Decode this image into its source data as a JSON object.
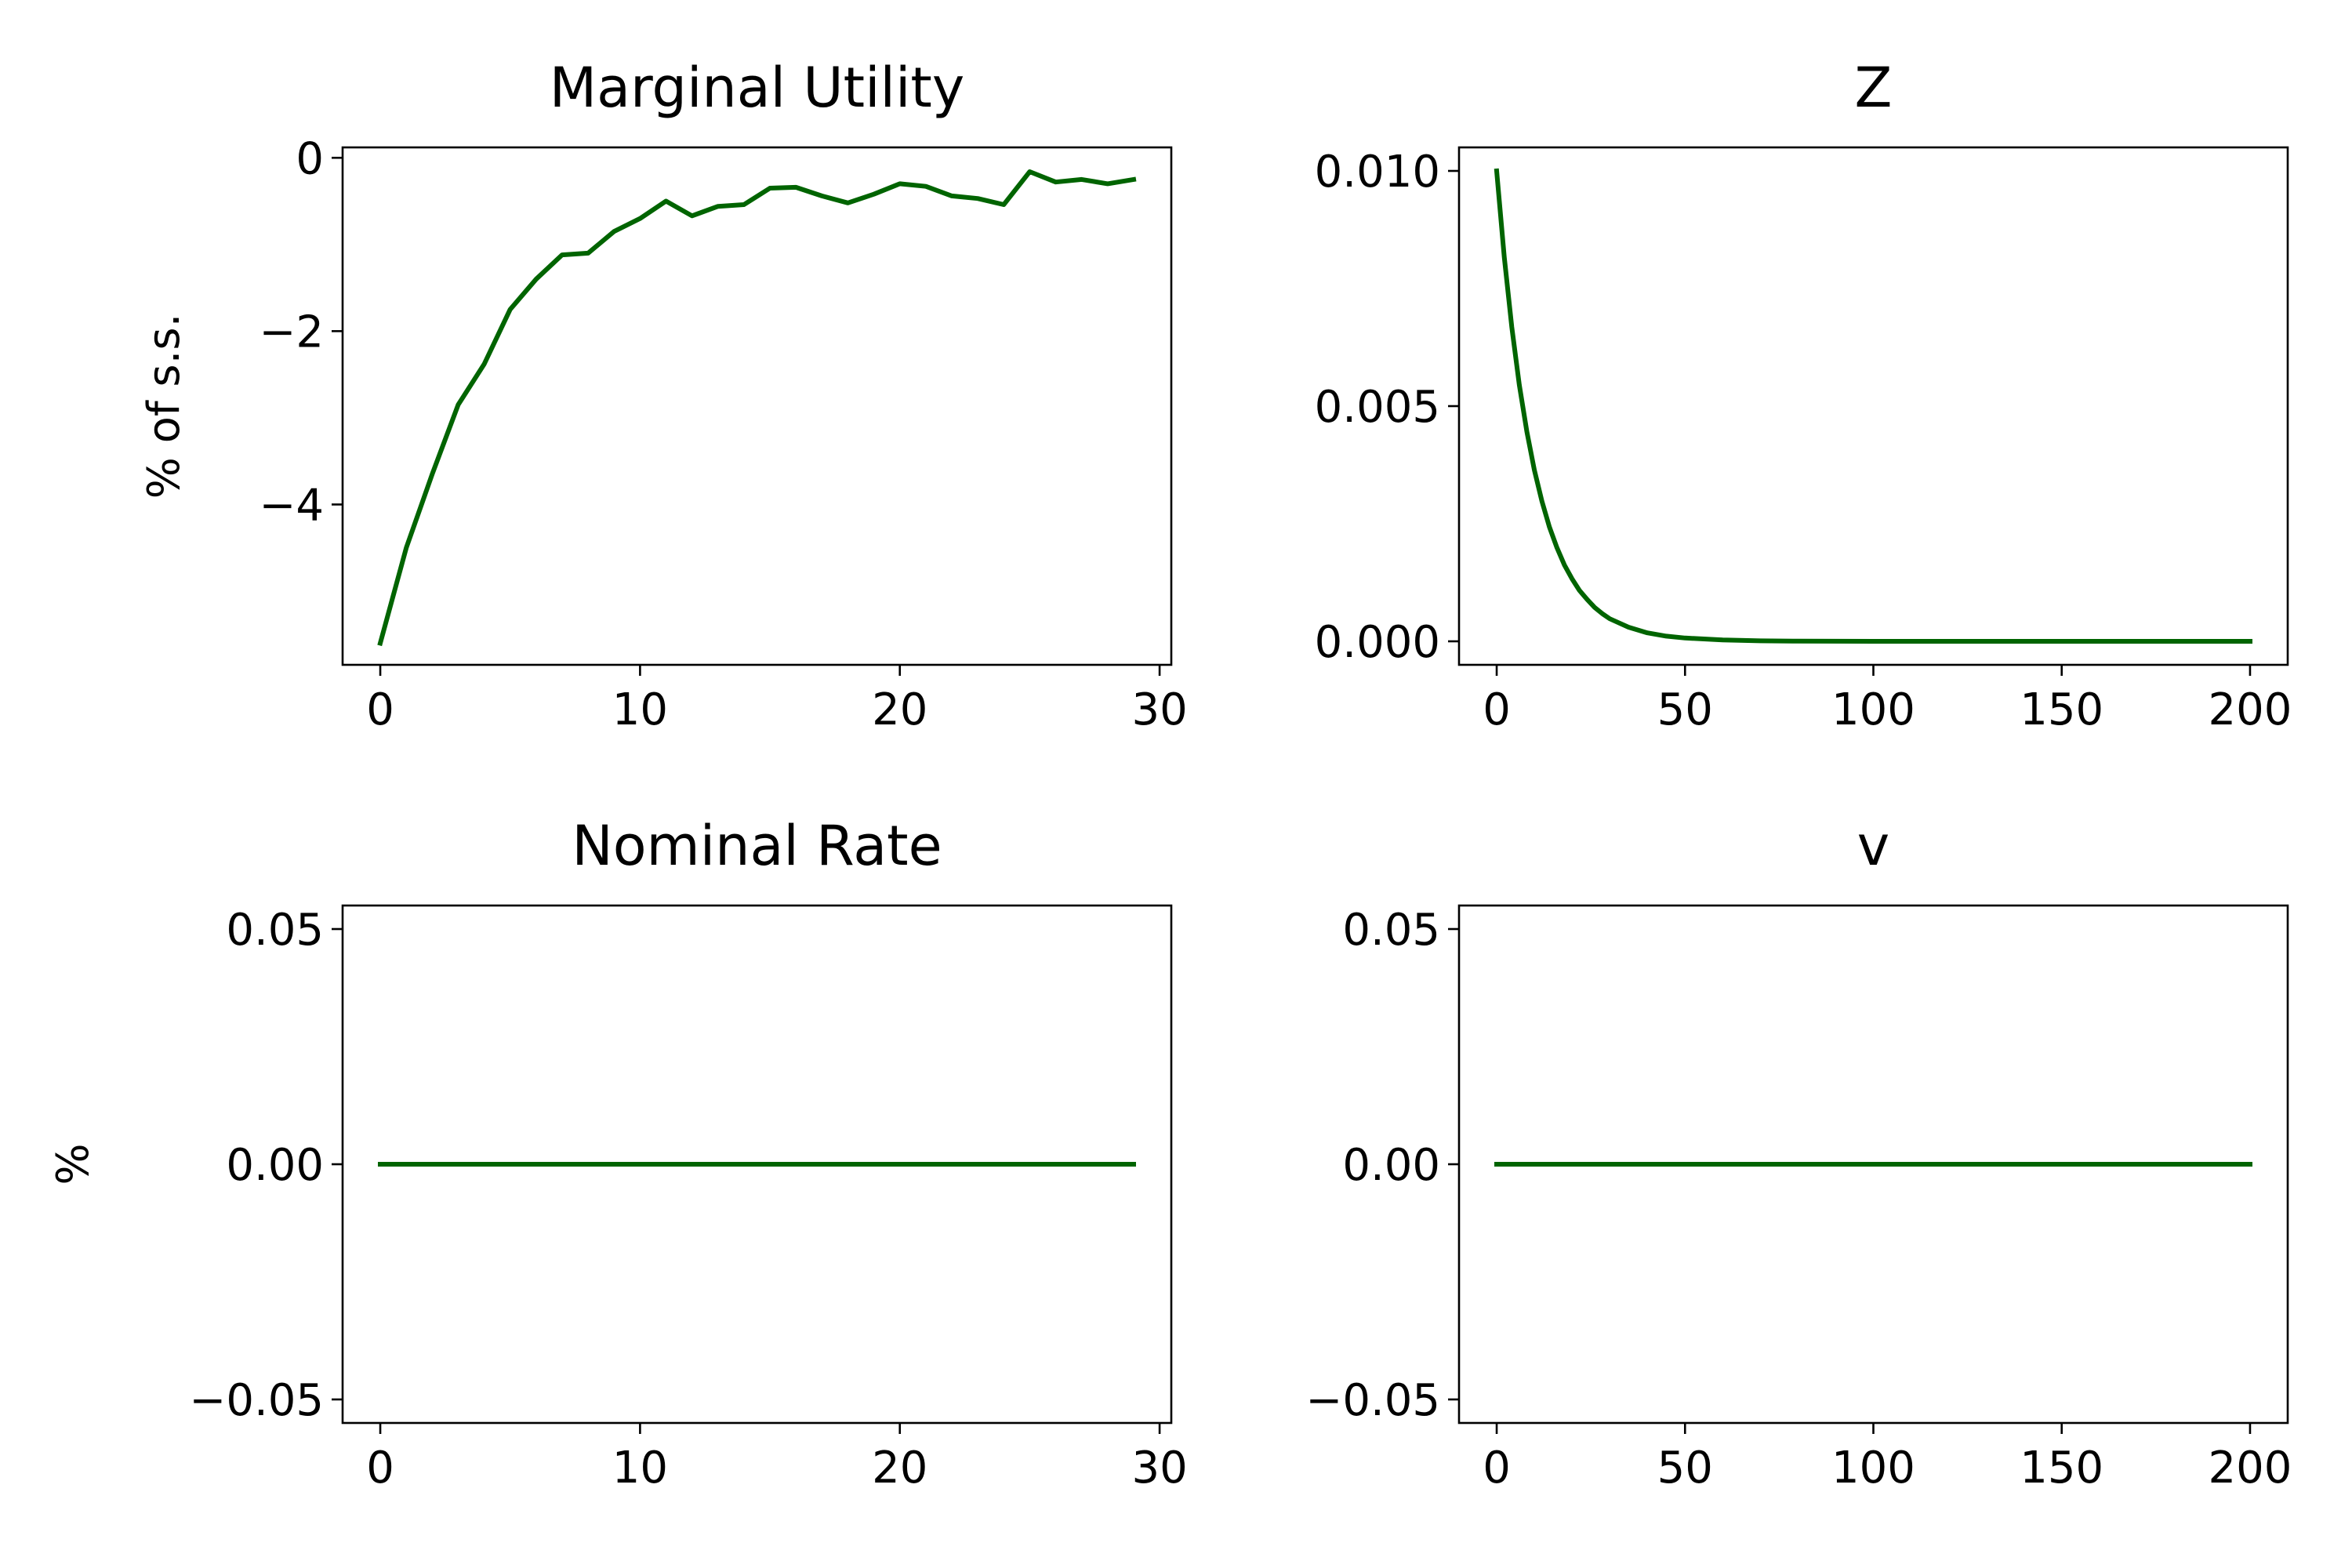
{
  "figure": {
    "line_color": "#006400",
    "background": "#ffffff"
  },
  "chart_data": [
    {
      "type": "line",
      "title": "Marginal Utility",
      "ylabel": "% of s.s.",
      "xlabel": "",
      "xlim": [
        -1.45,
        30.45
      ],
      "ylim": [
        -5.85,
        0.12
      ],
      "xticks": [
        0,
        10,
        20,
        30
      ],
      "xtick_labels": [
        "0",
        "10",
        "20",
        "30"
      ],
      "yticks": [
        -4,
        -2,
        0
      ],
      "ytick_labels": [
        "−4",
        "−2",
        "0"
      ],
      "series": [
        {
          "x": [
            0,
            1,
            2,
            3,
            4,
            5,
            6,
            7,
            8,
            9,
            10,
            11,
            12,
            13,
            14,
            15,
            16,
            17,
            18,
            19,
            20,
            21,
            22,
            23,
            24,
            25,
            26,
            27,
            28,
            29
          ],
          "values": [
            -5.6,
            -4.5,
            -3.65,
            -2.85,
            -2.38,
            -1.75,
            -1.4,
            -1.12,
            -1.1,
            -0.85,
            -0.7,
            -0.5,
            -0.67,
            -0.56,
            -0.54,
            -0.35,
            -0.34,
            -0.44,
            -0.52,
            -0.42,
            -0.3,
            -0.33,
            -0.44,
            -0.47,
            -0.54,
            -0.16,
            -0.28,
            -0.25,
            -0.3,
            -0.25
          ]
        }
      ]
    },
    {
      "type": "line",
      "title": "Z",
      "ylabel": "",
      "xlabel": "",
      "xlim": [
        -10,
        210
      ],
      "ylim": [
        -0.0005,
        0.0105
      ],
      "xticks": [
        0,
        50,
        100,
        150,
        200
      ],
      "xtick_labels": [
        "0",
        "50",
        "100",
        "150",
        "200"
      ],
      "yticks": [
        0,
        0.005,
        0.01
      ],
      "ytick_labels": [
        "0.000",
        "0.005",
        "0.010"
      ],
      "series": [
        {
          "x": [
            0,
            2,
            4,
            6,
            8,
            10,
            12,
            14,
            16,
            18,
            20,
            22,
            24,
            26,
            28,
            30,
            35,
            40,
            45,
            50,
            60,
            70,
            80,
            100,
            125,
            150,
            175,
            200
          ],
          "values": [
            0.01,
            0.00817,
            0.00668,
            0.00545,
            0.00446,
            0.00364,
            0.00298,
            0.00243,
            0.00199,
            0.00162,
            0.00133,
            0.00108,
            0.00089,
            0.00072,
            0.00059,
            0.00048,
            0.0003,
            0.00018,
            0.00011,
            7e-05,
            3e-05,
            1e-05,
            4e-06,
            7e-07,
            1e-07,
            0.0,
            0.0,
            0.0
          ]
        }
      ]
    },
    {
      "type": "line",
      "title": "Nominal Rate",
      "ylabel": "%",
      "xlabel": "",
      "xlim": [
        -1.45,
        30.45
      ],
      "ylim": [
        -0.055,
        0.055
      ],
      "xticks": [
        0,
        10,
        20,
        30
      ],
      "xtick_labels": [
        "0",
        "10",
        "20",
        "30"
      ],
      "yticks": [
        -0.05,
        0,
        0.05
      ],
      "ytick_labels": [
        "−0.05",
        "0.00",
        "0.05"
      ],
      "series": [
        {
          "x": [
            0,
            29
          ],
          "values": [
            0,
            0
          ]
        }
      ]
    },
    {
      "type": "line",
      "title": "v",
      "ylabel": "",
      "xlabel": "",
      "xlim": [
        -10,
        210
      ],
      "ylim": [
        -0.055,
        0.055
      ],
      "xticks": [
        0,
        50,
        100,
        150,
        200
      ],
      "xtick_labels": [
        "0",
        "50",
        "100",
        "150",
        "200"
      ],
      "yticks": [
        -0.05,
        0,
        0.05
      ],
      "ytick_labels": [
        "−0.05",
        "0.00",
        "0.05"
      ],
      "series": [
        {
          "x": [
            0,
            200
          ],
          "values": [
            0,
            0
          ]
        }
      ]
    }
  ]
}
